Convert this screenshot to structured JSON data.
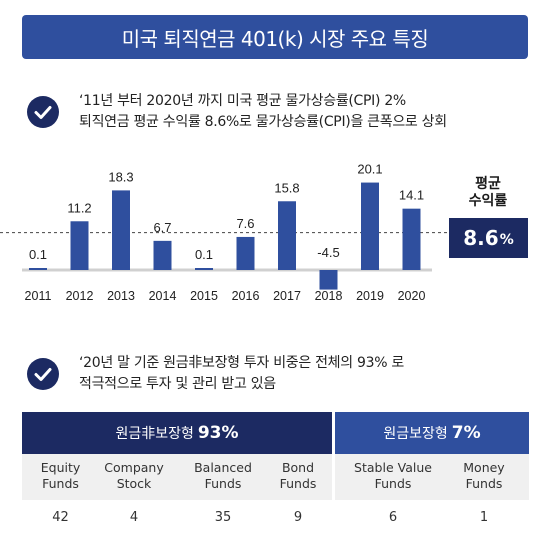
{
  "title": "미국 퇴직연금 401(k) 시장 주요 특징",
  "point1": {
    "line1": "‘11년 부터 2020년 까지 미국 평균 물가상승률(CPI) 2%",
    "line2": "퇴직연금 평균 수익률 8.6%로 물가상승률(CPI)을 큰폭으로 상회"
  },
  "average": {
    "label_line1": "평균",
    "label_line2": "수익률",
    "value": "8.6",
    "unit": "%"
  },
  "chart_data": {
    "type": "bar",
    "categories": [
      "2011",
      "2012",
      "2013",
      "2014",
      "2015",
      "2016",
      "2017",
      "2018",
      "2019",
      "2020"
    ],
    "values": [
      0.1,
      11.2,
      18.3,
      6.7,
      0.1,
      7.6,
      15.8,
      -4.5,
      20.1,
      14.1
    ],
    "value_labels": [
      "0.1",
      "11.2",
      "18.3",
      "6.7",
      "0.1",
      "7.6",
      "15.8",
      "-4.5",
      "20.1",
      "14.1"
    ],
    "reference_line": 8.6,
    "title": "",
    "xlabel": "",
    "ylabel": "",
    "bar_color": "#2f4f9e",
    "label_color": "#222222",
    "grid": false
  },
  "point2": {
    "line1": "‘20년 말 기준 원금非보장형 투자 비중은 전체의 93% 로",
    "line2": "적극적으로 투자 및 관리 받고 있음"
  },
  "table": {
    "group1": {
      "label": "원금非보장형",
      "pct": "93%",
      "items": [
        {
          "line1": "Equity",
          "line2": "Funds",
          "value": "42"
        },
        {
          "line1": "Company",
          "line2": "Stock",
          "value": "4"
        },
        {
          "line1": "Balanced",
          "line2": "Funds",
          "value": "35"
        },
        {
          "line1": "Bond",
          "line2": "Funds",
          "value": "9"
        }
      ]
    },
    "group2": {
      "label": "원금보장형",
      "pct": "7%",
      "items": [
        {
          "line1": "Stable Value",
          "line2": "Funds",
          "value": "6"
        },
        {
          "line1": "Money",
          "line2": "Funds",
          "value": "1"
        }
      ]
    }
  },
  "colors": {
    "navy": "#1c2a62",
    "blue": "#2f4f9e",
    "cell_bg": "#f0f0f0"
  }
}
